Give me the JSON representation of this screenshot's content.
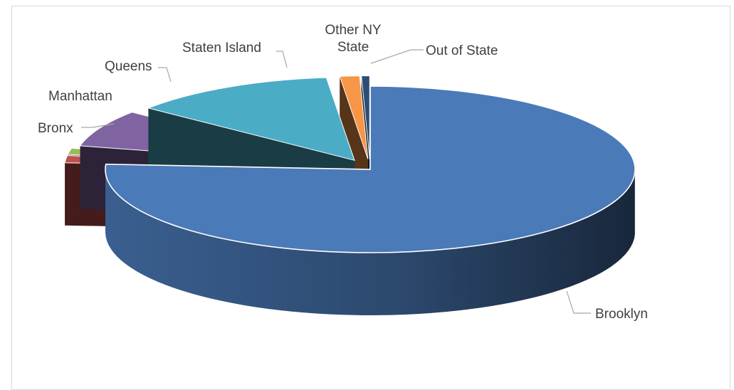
{
  "chart_data": {
    "type": "pie",
    "style": "3d-exploded",
    "title": "",
    "categories": [
      "Brooklyn",
      "Bronx",
      "Manhattan",
      "Queens",
      "Staten Island",
      "Other NY State",
      "Out of State"
    ],
    "values": [
      76.0,
      1.4,
      1.2,
      7.2,
      12.5,
      1.2,
      0.5
    ],
    "colors": [
      "#4a7ab8",
      "#c0504d",
      "#9bbb59",
      "#8064a2",
      "#4bacc6",
      "#f79646",
      "#2c4d75"
    ],
    "labels": [
      {
        "lines": [
          "Brooklyn"
        ]
      },
      {
        "lines": [
          "Bronx"
        ]
      },
      {
        "lines": [
          "Manhattan"
        ]
      },
      {
        "lines": [
          "Queens"
        ]
      },
      {
        "lines": [
          "Staten Island"
        ]
      },
      {
        "lines": [
          "Other NY",
          "State"
        ]
      },
      {
        "lines": [
          "Out of State"
        ]
      }
    ],
    "legend": "none",
    "grid": false
  }
}
